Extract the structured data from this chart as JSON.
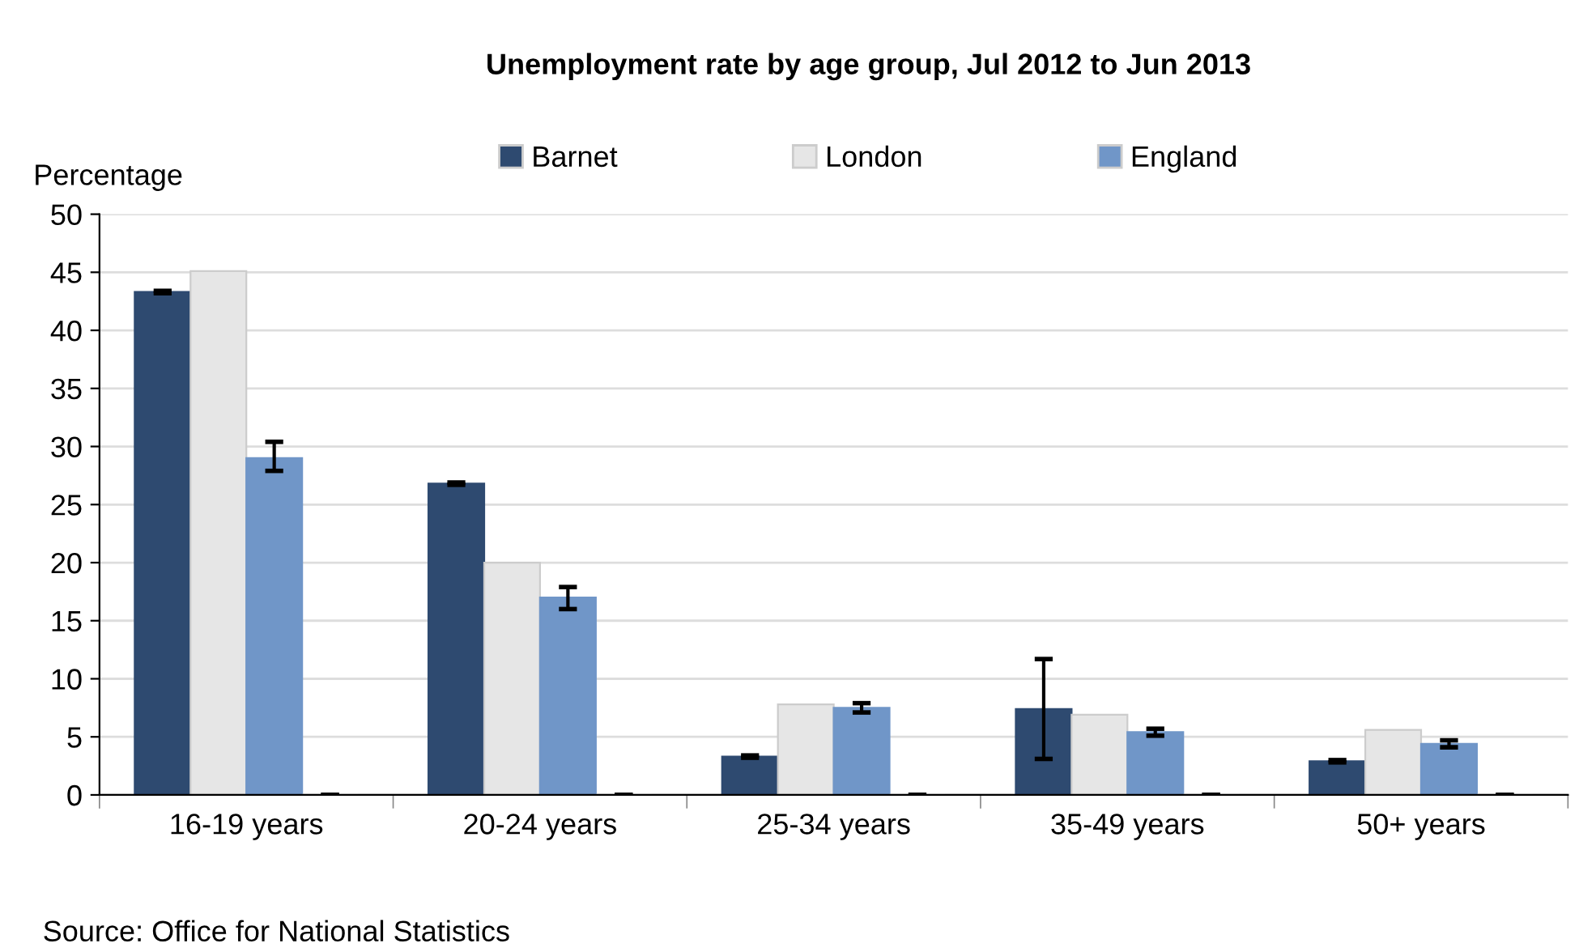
{
  "chart_data": {
    "type": "bar",
    "title": "Unemployment rate by age group, Jul 2012 to Jun 2013",
    "ylabel": "Percentage",
    "categories": [
      "16-19 years",
      "20-24 years",
      "25-34 years",
      "35-49 years",
      "50+ years"
    ],
    "series": [
      {
        "name": "Barnet",
        "color": "#2e4a70",
        "values": [
          43.3,
          26.8,
          3.3,
          7.4,
          2.9
        ],
        "errors": [
          0.1,
          0.1,
          0.1,
          [
            3.1,
            11.7
          ],
          0.1
        ]
      },
      {
        "name": "London",
        "color": "#e6e6e6",
        "values": [
          45.1,
          20.0,
          7.8,
          6.9,
          5.6
        ]
      },
      {
        "name": "England",
        "color": "#7096c8",
        "values": [
          29.0,
          17.0,
          7.5,
          5.4,
          4.4
        ],
        "errors": [
          [
            27.9,
            30.4
          ],
          [
            16.0,
            17.9
          ],
          [
            7.1,
            7.9
          ],
          [
            5.1,
            5.7
          ],
          [
            4.1,
            4.7
          ]
        ]
      },
      {
        "color": "#ffffff",
        "values": [
          0,
          0,
          0,
          0,
          0
        ],
        "errors": [
          0,
          0,
          0,
          0,
          0
        ]
      }
    ],
    "ylim": [
      0,
      50
    ],
    "yticks": [
      0,
      5,
      10,
      15,
      20,
      25,
      30,
      35,
      40,
      45,
      50
    ],
    "grid": "y",
    "legend": "top",
    "annotations": [
      "Source: Office for National Statistics"
    ]
  }
}
